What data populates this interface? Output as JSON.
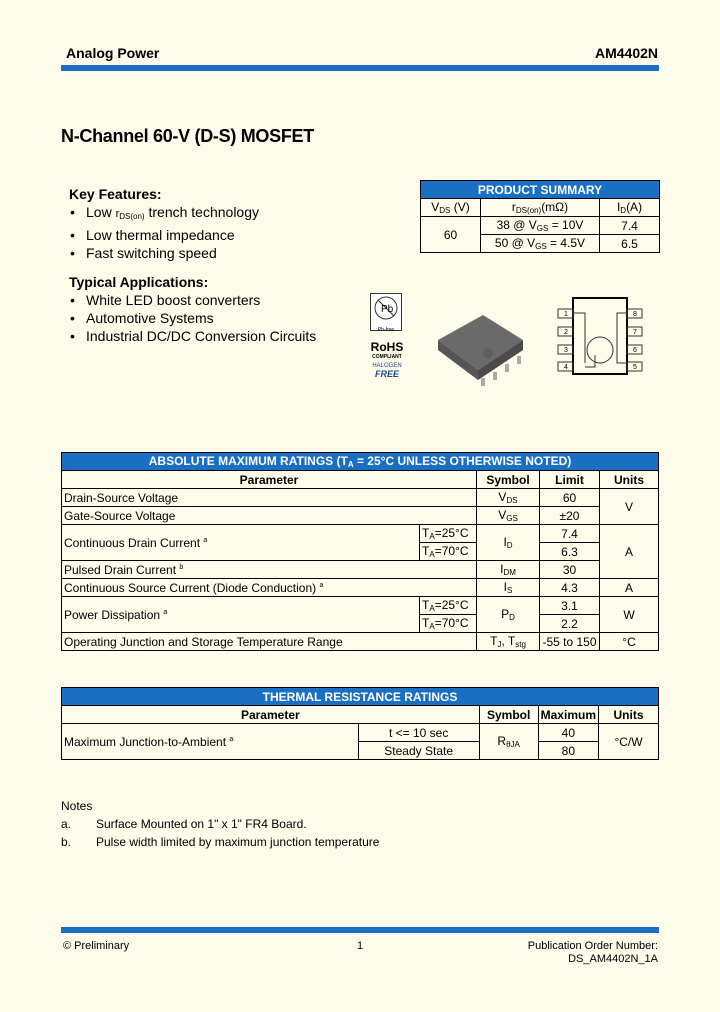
{
  "header": {
    "company": "Analog Power",
    "part": "AM4402N"
  },
  "title": "N-Channel 60-V (D-S) MOSFET",
  "features": {
    "heading": "Key Features:",
    "items": [
      {
        "pre": "Low ",
        "sym": "r",
        "sub": "DS(on)",
        "post": " trench technology"
      },
      {
        "pre": "Low thermal impedance"
      },
      {
        "pre": "Fast switching speed"
      }
    ]
  },
  "applications": {
    "heading": "Typical Applications:",
    "items": [
      "White LED boost converters",
      "Automotive Systems",
      "Industrial DC/DC Conversion Circuits"
    ]
  },
  "summary": {
    "title": "PRODUCT SUMMARY",
    "h": [
      "V",
      "DS",
      "(V)",
      "r",
      "DS(on)",
      "(mΩ)",
      "I",
      "D",
      "(A)"
    ],
    "vds": "60",
    "rows": [
      {
        "r": "38 @ V",
        "sub": "GS",
        "cond": " = 10V",
        "id": "7.4"
      },
      {
        "r": "50 @ V",
        "sub": "GS",
        "cond": " = 4.5V",
        "id": "6.5"
      }
    ]
  },
  "badges": {
    "pb": "Pb-free",
    "rohs": "RoHS",
    "compliant": "COMPLIANT",
    "halogen": "HALOGEN",
    "free": "FREE"
  },
  "pins": [
    "1",
    "2",
    "3",
    "4",
    "8",
    "7",
    "6",
    "5"
  ],
  "abs": {
    "title": "ABSOLUTE MAXIMUM RATINGS (T",
    "title_sub": "A",
    "title_end": " = 25°C UNLESS OTHERWISE NOTED)",
    "cols": [
      "Parameter",
      "Symbol",
      "Limit",
      "Units"
    ],
    "vds": {
      "p": "Drain-Source Voltage",
      "s": "V",
      "ss": "DS",
      "l": "60"
    },
    "vgs": {
      "p": "Gate-Source Voltage",
      "s": "V",
      "ss": "GS",
      "l": "±20"
    },
    "vunit": "V",
    "id": {
      "p": "Continuous Drain Current",
      "n": "a",
      "c1": "=25°C",
      "c2": "=70°C",
      "s": "I",
      "ss": "D",
      "l1": "7.4",
      "l2": "6.3"
    },
    "aunit": "A",
    "idm": {
      "p": "Pulsed Drain Current",
      "n": "b",
      "s": "I",
      "ss": "DM",
      "l": "30"
    },
    "is": {
      "p": "Continuous Source Current (Diode Conduction)",
      "n": "a",
      "s": "I",
      "ss": "S",
      "l": "4.3",
      "u": "A"
    },
    "pd": {
      "p": "Power Dissipation",
      "n": "a",
      "c1": "=25°C",
      "c2": "=70°C",
      "s": "P",
      "ss": "D",
      "l1": "3.1",
      "l2": "2.2",
      "u": "W"
    },
    "tj": {
      "p": "Operating Junction and Storage Temperature Range",
      "s": "T",
      "ss": "J",
      "s2": ", T",
      "ss2": "stg",
      "l": "-55 to 150",
      "u": "°C"
    },
    "ta": "T",
    "tasub": "A"
  },
  "thermal": {
    "title": "THERMAL RESISTANCE RATINGS",
    "cols": [
      "Parameter",
      "Symbol",
      "Maximum",
      "Units"
    ],
    "p": "Maximum Junction-to-Ambient",
    "n": "a",
    "c1": "t <= 10 sec",
    "c2": "Steady State",
    "s": "R",
    "ss": "θJA",
    "m1": "40",
    "m2": "80",
    "u": "°C/W"
  },
  "notes": {
    "heading": "Notes",
    "items": [
      {
        "k": "a.",
        "t": "Surface Mounted on 1\" x 1\" FR4 Board."
      },
      {
        "k": "b.",
        "t": "Pulse width limited by maximum junction temperature"
      }
    ]
  },
  "footer": {
    "left": "© Preliminary",
    "page": "1",
    "right1": "Publication Order Number:",
    "right2": "DS_AM4402N_1A"
  }
}
